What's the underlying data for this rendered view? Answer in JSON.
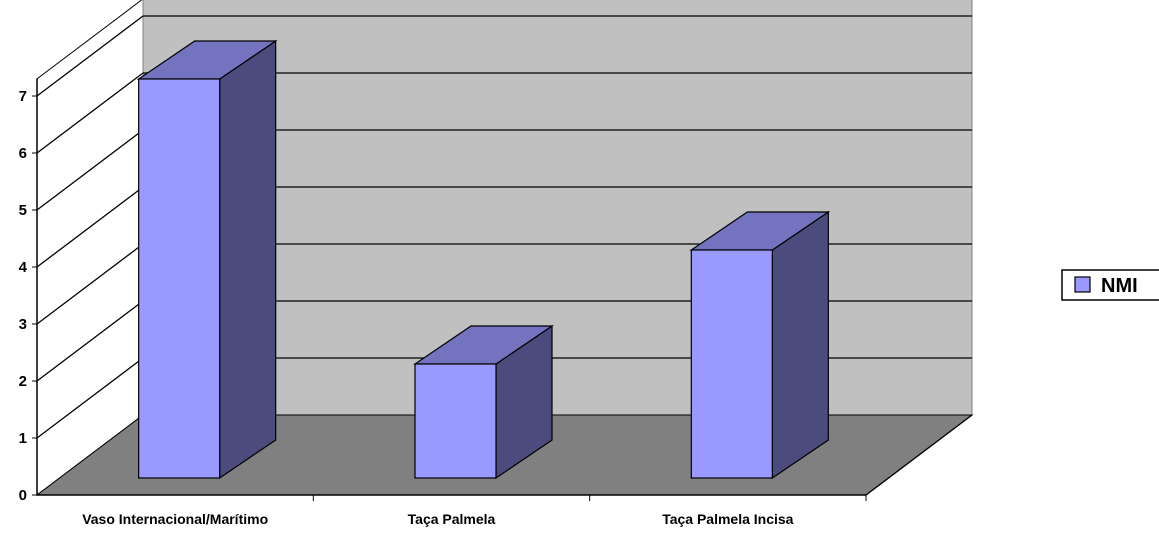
{
  "chart_data": {
    "type": "bar",
    "style": "3d-column",
    "categories": [
      "Vaso Internacional/Marítimo",
      "Taça Palmela",
      "Taça Palmela Incisa"
    ],
    "series": [
      {
        "name": "NMI",
        "values": [
          7,
          2,
          4
        ]
      }
    ],
    "ylim": [
      0,
      7
    ],
    "yticks": [
      "0",
      "1",
      "2",
      "3",
      "4",
      "5",
      "6",
      "7"
    ],
    "grid": true,
    "legend_position": "right",
    "colors": {
      "bar_front": "#9999ff",
      "bar_side": "#4b4b7e",
      "bar_top": "#7373c0",
      "back_wall": "#c0c0c0",
      "floor": "#808080",
      "side_wall": "#ffffff",
      "axis": "#000000"
    }
  }
}
